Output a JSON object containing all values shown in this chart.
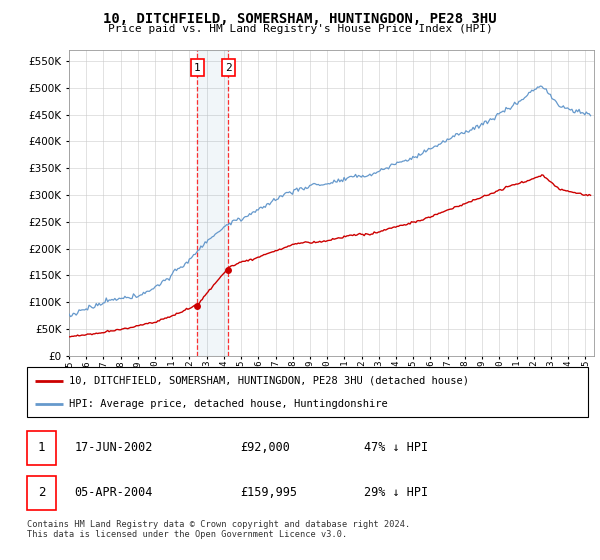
{
  "title": "10, DITCHFIELD, SOMERSHAM, HUNTINGDON, PE28 3HU",
  "subtitle": "Price paid vs. HM Land Registry's House Price Index (HPI)",
  "ytick_values": [
    0,
    50000,
    100000,
    150000,
    200000,
    250000,
    300000,
    350000,
    400000,
    450000,
    500000,
    550000
  ],
  "xmin": 1995.0,
  "xmax": 2025.5,
  "ymin": 0,
  "ymax": 570000,
  "hpi_color": "#6699cc",
  "price_color": "#cc0000",
  "transaction1_date": 2002.46,
  "transaction1_price": 92000,
  "transaction2_date": 2004.26,
  "transaction2_price": 159995,
  "legend_label_price": "10, DITCHFIELD, SOMERSHAM, HUNTINGDON, PE28 3HU (detached house)",
  "legend_label_hpi": "HPI: Average price, detached house, Huntingdonshire",
  "table_row1_date": "17-JUN-2002",
  "table_row1_price": "£92,000",
  "table_row1_hpi": "47% ↓ HPI",
  "table_row2_date": "05-APR-2004",
  "table_row2_price": "£159,995",
  "table_row2_hpi": "29% ↓ HPI",
  "footer": "Contains HM Land Registry data © Crown copyright and database right 2024.\nThis data is licensed under the Open Government Licence v3.0.",
  "grid_color": "#cccccc"
}
